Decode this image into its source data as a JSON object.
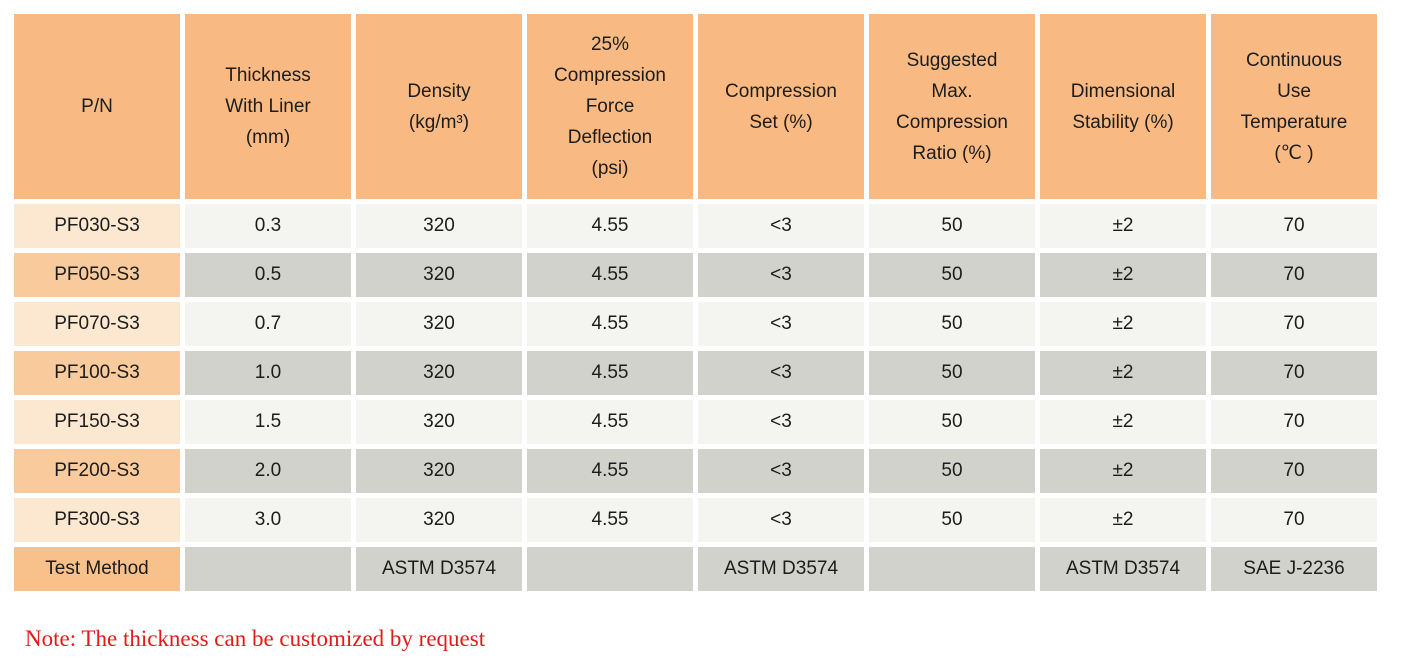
{
  "colors": {
    "header_bg": "#F8BA82",
    "pn_light_bg": "#FCE7D0",
    "pn_dark_bg": "#F8CA9C",
    "test_label_bg": "#F8C08A",
    "cell_light_bg": "#F4F4F0",
    "cell_dark_bg": "#D2D2CC",
    "text": "#1C1C1C",
    "note_red": "#E21A1A"
  },
  "table": {
    "columns": [
      {
        "label": "P/N"
      },
      {
        "label": "Thickness\nWith Liner\n(mm)"
      },
      {
        "label": "Density\n(kg/m³)"
      },
      {
        "label": "25%\nCompression\nForce\nDeflection\n(psi)"
      },
      {
        "label": "Compression\nSet (%)"
      },
      {
        "label": "Suggested\nMax.\nCompression\nRatio (%)"
      },
      {
        "label": "Dimensional\nStability (%)"
      },
      {
        "label": "Continuous\nUse\nTemperature\n(℃ )"
      }
    ],
    "rows": [
      {
        "pn": "PF030-S3",
        "values": [
          "0.3",
          "320",
          "4.55",
          "<3",
          "50",
          "±2",
          "70"
        ]
      },
      {
        "pn": "PF050-S3",
        "values": [
          "0.5",
          "320",
          "4.55",
          "<3",
          "50",
          "±2",
          "70"
        ]
      },
      {
        "pn": "PF070-S3",
        "values": [
          "0.7",
          "320",
          "4.55",
          "<3",
          "50",
          "±2",
          "70"
        ]
      },
      {
        "pn": "PF100-S3",
        "values": [
          "1.0",
          "320",
          "4.55",
          "<3",
          "50",
          "±2",
          "70"
        ]
      },
      {
        "pn": "PF150-S3",
        "values": [
          "1.5",
          "320",
          "4.55",
          "<3",
          "50",
          "±2",
          "70"
        ]
      },
      {
        "pn": "PF200-S3",
        "values": [
          "2.0",
          "320",
          "4.55",
          "<3",
          "50",
          "±2",
          "70"
        ]
      },
      {
        "pn": "PF300-S3",
        "values": [
          "3.0",
          "320",
          "4.55",
          "<3",
          "50",
          "±2",
          "70"
        ]
      }
    ],
    "test_method": {
      "label": "Test Method",
      "values": [
        "",
        "ASTM D3574",
        "",
        "ASTM D3574",
        "",
        "ASTM D3574",
        "SAE J-2236"
      ]
    }
  },
  "note": "Note: The thickness can be customized by request"
}
